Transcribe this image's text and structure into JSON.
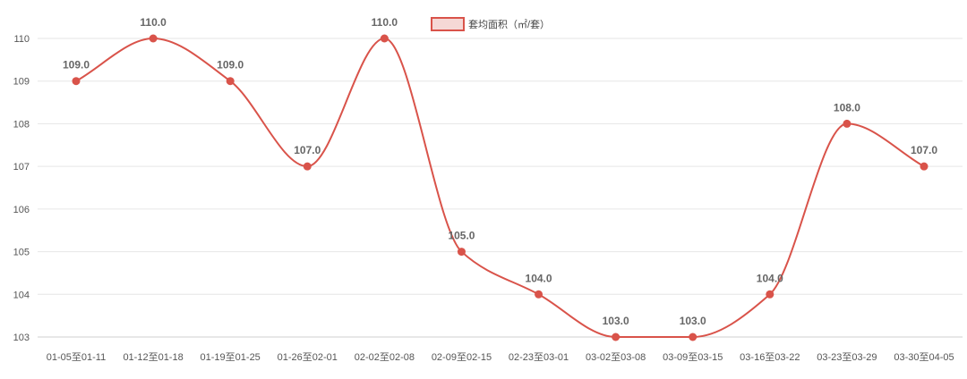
{
  "chart_data": {
    "type": "line",
    "categories": [
      "01-05至01-11",
      "01-12至01-18",
      "01-19至01-25",
      "01-26至02-01",
      "02-02至02-08",
      "02-09至02-15",
      "02-23至03-01",
      "03-02至03-08",
      "03-09至03-15",
      "03-16至03-22",
      "03-23至03-29",
      "03-30至04-05"
    ],
    "series": [
      {
        "name": "套均面积（㎡/套）",
        "values": [
          109.0,
          110.0,
          109.0,
          107.0,
          110.0,
          105.0,
          104.0,
          103.0,
          103.0,
          104.0,
          108.0,
          107.0
        ],
        "labels": [
          "109.0",
          "110.0",
          "109.0",
          "107.0",
          "110.0",
          "105.0",
          "104.0",
          "103.0",
          "103.0",
          "104.0",
          "108.0",
          "107.0"
        ],
        "color": "#d9534a"
      }
    ],
    "yticks": [
      "103",
      "104",
      "105",
      "106",
      "107",
      "108",
      "109",
      "110"
    ],
    "ylim": [
      103,
      110
    ],
    "grid": true,
    "legend_position": "top-center",
    "smooth": true
  }
}
